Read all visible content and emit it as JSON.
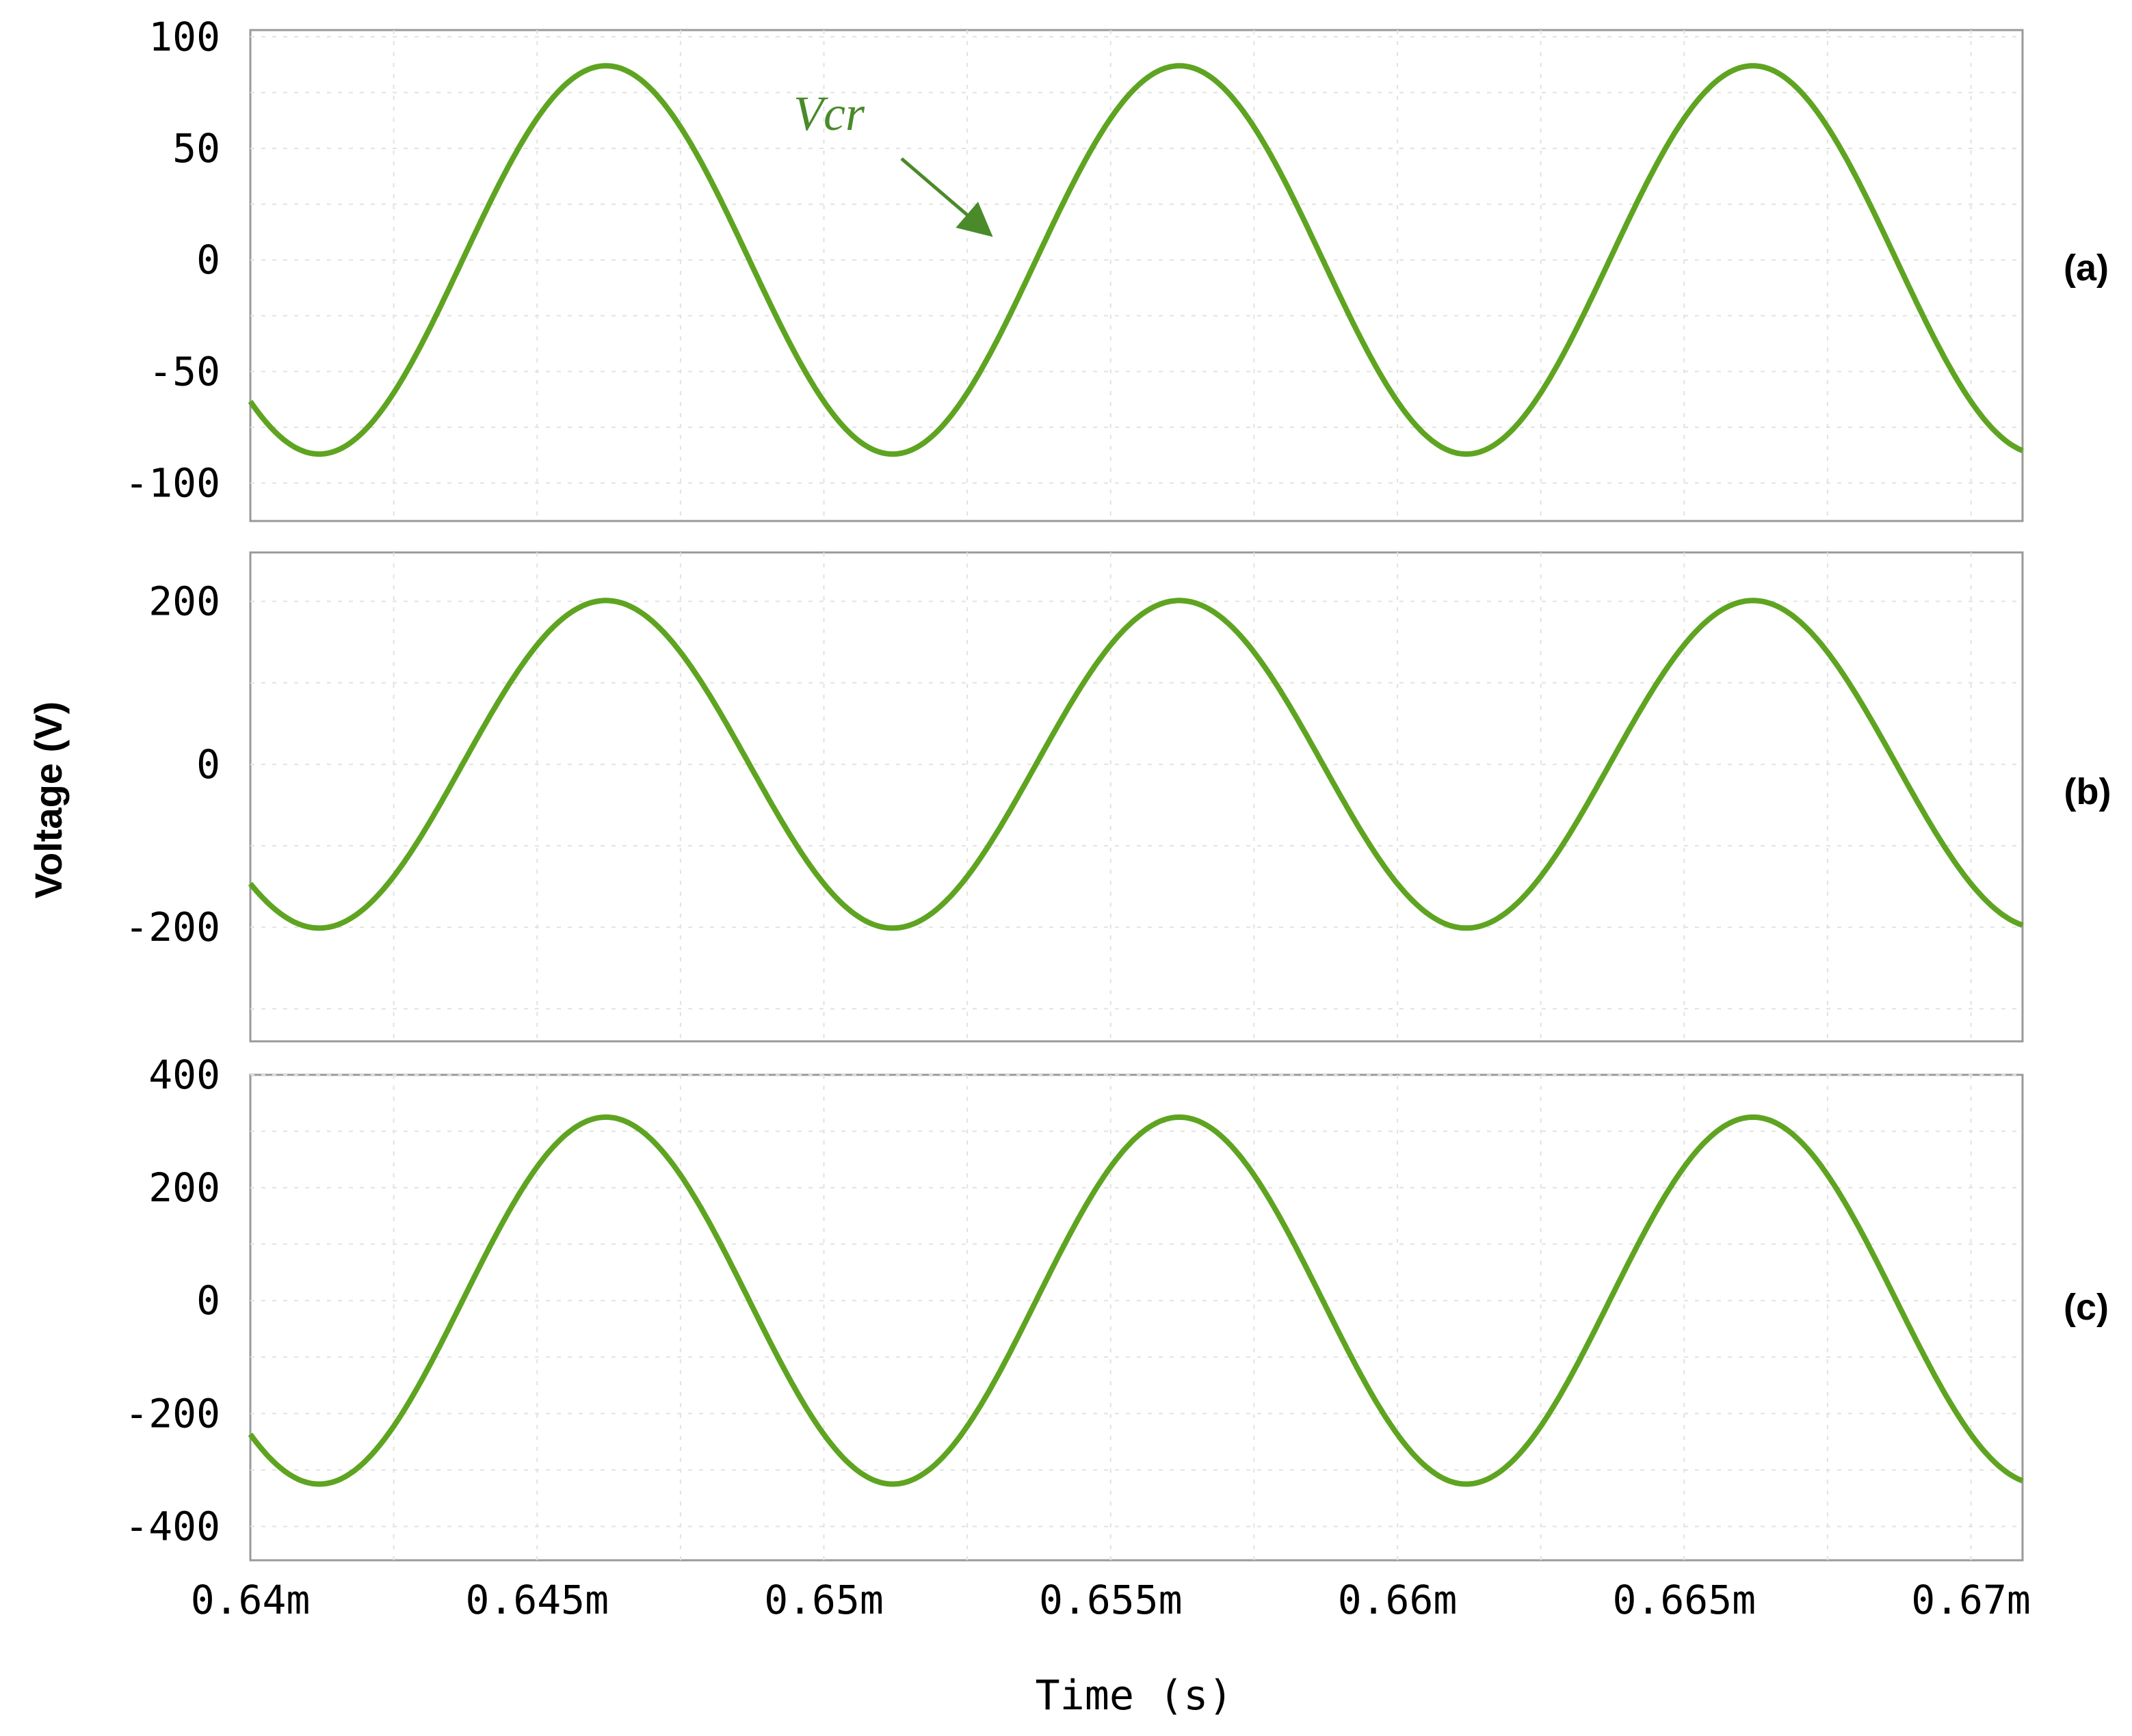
{
  "colors": {
    "series": "#5ea421",
    "annotation": "#4a8a2a",
    "frame": "#9a9a9a",
    "grid": "#e2e2e2"
  },
  "shared": {
    "ylabel": "Voltage (V)",
    "xlabel": "Time (s)",
    "x_ticks": [
      "0.64m",
      "0.645m",
      "0.65m",
      "0.655m",
      "0.66m",
      "0.665m",
      "0.67m"
    ]
  },
  "chart_data": [
    {
      "type": "line",
      "panel_label": "(a)",
      "xlim": [
        0.64,
        0.6709
      ],
      "ylim": [
        -117,
        103
      ],
      "yticks": [
        "100",
        "50",
        "0",
        "-50",
        "-100"
      ],
      "grid": true,
      "annotation": "Vcr",
      "series": [
        {
          "amplitude": 87,
          "period": 0.01,
          "phase_start": 0.6397,
          "x_start": 0.64,
          "x_end": 0.6709
        }
      ]
    },
    {
      "type": "line",
      "panel_label": "(b)",
      "xlim": [
        0.64,
        0.6709
      ],
      "ylim": [
        -340,
        260
      ],
      "yticks": [
        "200",
        "0",
        "-200"
      ],
      "grid": true,
      "series": [
        {
          "amplitude": 201,
          "period": 0.01,
          "phase_start": 0.6397,
          "x_start": 0.64,
          "x_end": 0.6709
        }
      ]
    },
    {
      "type": "line",
      "panel_label": "(c)",
      "xlim": [
        0.64,
        0.6709
      ],
      "ylim": [
        -460,
        400
      ],
      "yticks": [
        "400",
        "200",
        "0",
        "-200",
        "-400"
      ],
      "grid": true,
      "series": [
        {
          "amplitude": 325,
          "period": 0.01,
          "phase_start": 0.6397,
          "x_start": 0.64,
          "x_end": 0.6709
        }
      ]
    }
  ]
}
